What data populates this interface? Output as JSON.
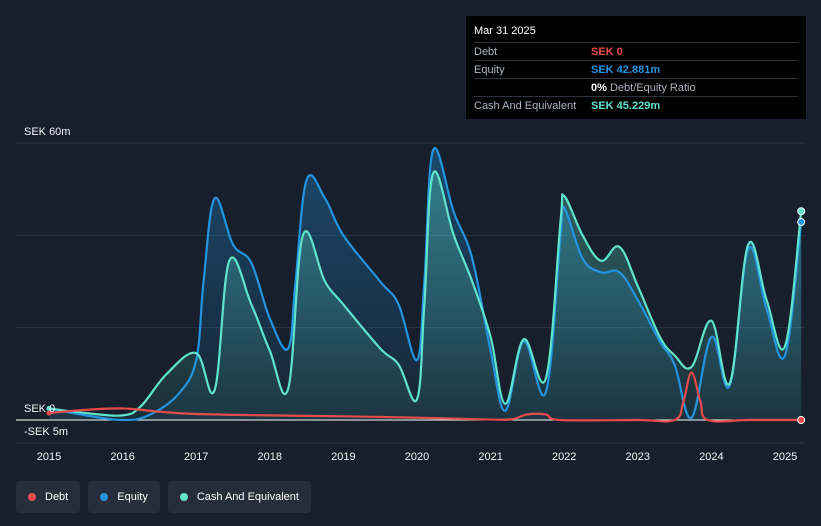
{
  "tooltip": {
    "date": "Mar 31 2025",
    "rows": [
      {
        "label": "Debt",
        "value": "SEK 0",
        "color": "#e64b4b"
      },
      {
        "label": "Equity",
        "value": "SEK 42.881m",
        "color": "#2394df"
      },
      {
        "label": "",
        "value": "0%",
        "suffix": "Debt/Equity Ratio",
        "color": "#ffffff"
      },
      {
        "label": "Cash And Equivalent",
        "value": "SEK 45.229m",
        "color": "#5fe3cc"
      }
    ]
  },
  "legend": [
    {
      "label": "Debt",
      "color": "#e64b4b"
    },
    {
      "label": "Equity",
      "color": "#2394df"
    },
    {
      "label": "Cash And Equivalent",
      "color": "#5fe3cc"
    }
  ],
  "chart_data": {
    "type": "area",
    "y_top_label": "SEK 60m",
    "y_zero_label": "SEK 0",
    "y_bottom_label": "-SEK 5m",
    "ylim": [
      -5,
      60
    ],
    "xlim": [
      2015.0,
      2025.25
    ],
    "x_tick_labels": [
      "2015",
      "2016",
      "2017",
      "2018",
      "2019",
      "2020",
      "2021",
      "2022",
      "2023",
      "2024",
      "2025"
    ],
    "grid": true,
    "legend_position": "bottom-left",
    "series": [
      {
        "name": "Debt",
        "color": "#e64b4b",
        "points": [
          [
            2015.0,
            1.5
          ],
          [
            2015.5,
            2.2
          ],
          [
            2016.0,
            2.5
          ],
          [
            2016.5,
            1.8
          ],
          [
            2017.0,
            1.3
          ],
          [
            2018.0,
            1.0
          ],
          [
            2019.0,
            0.8
          ],
          [
            2020.0,
            0.5
          ],
          [
            2021.0,
            0.1
          ],
          [
            2021.3,
            0.2
          ],
          [
            2021.5,
            1.2
          ],
          [
            2021.75,
            1.2
          ],
          [
            2021.95,
            0.0
          ],
          [
            2023.0,
            0.0
          ],
          [
            2023.5,
            0.0
          ],
          [
            2023.62,
            4.0
          ],
          [
            2023.73,
            10.3
          ],
          [
            2023.85,
            4.0
          ],
          [
            2023.95,
            0.0
          ],
          [
            2024.5,
            0.0
          ],
          [
            2025.0,
            0.0
          ],
          [
            2025.22,
            0.0
          ]
        ]
      },
      {
        "name": "Equity",
        "color": "#2394df",
        "points": [
          [
            2015.0,
            2.5
          ],
          [
            2015.5,
            1.0
          ],
          [
            2016.0,
            0.0
          ],
          [
            2016.35,
            1.0
          ],
          [
            2016.75,
            5.5
          ],
          [
            2017.0,
            13.0
          ],
          [
            2017.1,
            30.0
          ],
          [
            2017.25,
            48.0
          ],
          [
            2017.5,
            38.0
          ],
          [
            2017.75,
            34.0
          ],
          [
            2018.0,
            22.0
          ],
          [
            2018.25,
            15.5
          ],
          [
            2018.35,
            30.0
          ],
          [
            2018.5,
            52.0
          ],
          [
            2018.75,
            48.0
          ],
          [
            2019.0,
            40.0
          ],
          [
            2019.5,
            30.0
          ],
          [
            2019.75,
            25.0
          ],
          [
            2020.0,
            13.0
          ],
          [
            2020.1,
            30.0
          ],
          [
            2020.22,
            58.5
          ],
          [
            2020.5,
            45.0
          ],
          [
            2020.75,
            35.0
          ],
          [
            2021.0,
            15.0
          ],
          [
            2021.2,
            2.0
          ],
          [
            2021.45,
            17.0
          ],
          [
            2021.75,
            6.0
          ],
          [
            2021.95,
            40.0
          ],
          [
            2022.0,
            46.0
          ],
          [
            2022.25,
            35.0
          ],
          [
            2022.5,
            32.0
          ],
          [
            2022.75,
            32.0
          ],
          [
            2023.0,
            26.0
          ],
          [
            2023.3,
            17.0
          ],
          [
            2023.5,
            12.0
          ],
          [
            2023.73,
            0.5
          ],
          [
            2024.0,
            18.0
          ],
          [
            2024.25,
            7.5
          ],
          [
            2024.5,
            37.0
          ],
          [
            2024.75,
            24.0
          ],
          [
            2025.0,
            14.0
          ],
          [
            2025.22,
            42.881
          ]
        ]
      },
      {
        "name": "Cash And Equivalent",
        "color": "#5fe3cc",
        "points": [
          [
            2015.0,
            2.5
          ],
          [
            2015.5,
            1.5
          ],
          [
            2016.0,
            1.0
          ],
          [
            2016.25,
            3.0
          ],
          [
            2016.6,
            10.0
          ],
          [
            2017.0,
            14.5
          ],
          [
            2017.25,
            6.5
          ],
          [
            2017.45,
            34.5
          ],
          [
            2017.75,
            25.0
          ],
          [
            2018.0,
            15.0
          ],
          [
            2018.25,
            6.8
          ],
          [
            2018.45,
            40.0
          ],
          [
            2018.75,
            30.0
          ],
          [
            2019.0,
            25.0
          ],
          [
            2019.5,
            15.5
          ],
          [
            2019.75,
            12.0
          ],
          [
            2020.0,
            4.5
          ],
          [
            2020.1,
            25.0
          ],
          [
            2020.22,
            53.5
          ],
          [
            2020.5,
            40.0
          ],
          [
            2020.75,
            30.0
          ],
          [
            2021.0,
            18.0
          ],
          [
            2021.2,
            3.5
          ],
          [
            2021.45,
            17.5
          ],
          [
            2021.75,
            9.0
          ],
          [
            2021.95,
            43.0
          ],
          [
            2022.0,
            48.5
          ],
          [
            2022.25,
            40.0
          ],
          [
            2022.5,
            34.5
          ],
          [
            2022.75,
            37.5
          ],
          [
            2023.0,
            29.0
          ],
          [
            2023.3,
            18.0
          ],
          [
            2023.5,
            14.0
          ],
          [
            2023.73,
            11.5
          ],
          [
            2024.0,
            21.5
          ],
          [
            2024.25,
            8.0
          ],
          [
            2024.5,
            38.0
          ],
          [
            2024.75,
            26.0
          ],
          [
            2025.0,
            16.0
          ],
          [
            2025.22,
            45.229
          ]
        ]
      }
    ]
  }
}
